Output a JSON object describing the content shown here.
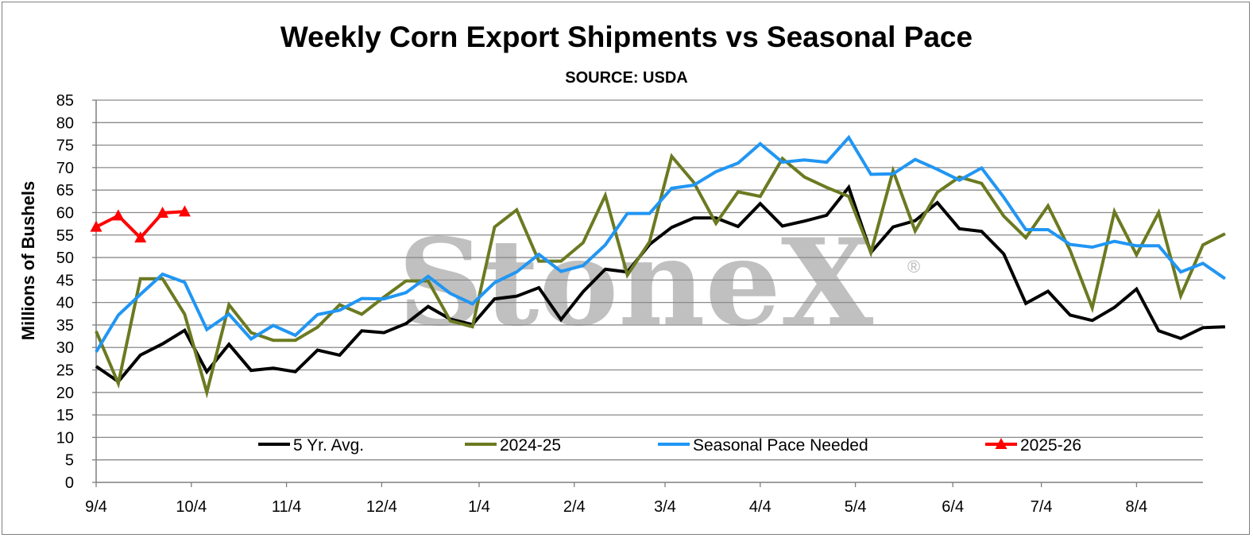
{
  "chart_data": {
    "type": "line",
    "title": "Weekly Corn Export Shipments vs Seasonal Pace",
    "subtitle": "SOURCE: USDA",
    "ylabel": "Millions of Bushels",
    "xlabel": "",
    "ylim": [
      0,
      85
    ],
    "ytick_step": 5,
    "x_tick_labels": [
      "9/4",
      "10/4",
      "11/4",
      "12/4",
      "1/4",
      "2/4",
      "3/4",
      "4/4",
      "5/4",
      "6/4",
      "7/4",
      "8/4"
    ],
    "x_tick_weeks": [
      0,
      4.3,
      8.6,
      12.9,
      17.3,
      21.6,
      25.7,
      30.0,
      34.3,
      38.7,
      42.7,
      47.0
    ],
    "x_weeks_max": 50,
    "grid": true,
    "legend_position": "bottom",
    "watermark": "StoneX",
    "series": [
      {
        "name": "5 Yr. Avg.",
        "color": "#000000",
        "marker": "none",
        "values": [
          25.8,
          22.4,
          28.3,
          30.8,
          33.8,
          24.6,
          30.7,
          24.9,
          25.4,
          24.6,
          29.4,
          28.3,
          33.7,
          33.3,
          35.3,
          39.1,
          36.3,
          35.1,
          40.8,
          41.4,
          43.3,
          36.2,
          42.4,
          47.4,
          46.8,
          52.9,
          56.7,
          58.8,
          58.8,
          56.9,
          62.0,
          57.0,
          58.1,
          59.4,
          65.6,
          51.1,
          56.8,
          58.2,
          62.2,
          56.4,
          55.8,
          50.8,
          39.8,
          42.5,
          37.2,
          36.0,
          38.9,
          43.0,
          33.7,
          32.0,
          34.4,
          34.6
        ]
      },
      {
        "name": "2024-25",
        "color": "#6b7a21",
        "marker": "none",
        "values": [
          33.6,
          22.0,
          45.3,
          45.3,
          37.4,
          20.0,
          39.5,
          33.3,
          31.6,
          31.6,
          34.5,
          39.5,
          37.4,
          41.2,
          44.8,
          44.8,
          35.9,
          34.6,
          56.8,
          60.6,
          49.2,
          49.2,
          53.3,
          63.8,
          46.1,
          53.5,
          72.5,
          66.7,
          57.6,
          64.6,
          63.6,
          72.0,
          67.9,
          65.6,
          63.6,
          51.1,
          69.3,
          55.9,
          64.5,
          67.9,
          66.5,
          59.2,
          54.4,
          61.5,
          51.6,
          38.8,
          60.2,
          50.6,
          60.0,
          41.5,
          52.8,
          55.3
        ]
      },
      {
        "name": "Seasonal Pace Needed",
        "color": "#2196f3",
        "marker": "none",
        "values": [
          29.0,
          37.2,
          41.8,
          46.3,
          44.5,
          34.0,
          37.4,
          31.9,
          34.9,
          32.7,
          37.3,
          38.3,
          40.9,
          40.8,
          42.2,
          45.8,
          42.0,
          39.7,
          44.4,
          46.8,
          50.7,
          46.9,
          48.2,
          52.8,
          59.8,
          59.8,
          65.4,
          66.1,
          69.1,
          71.0,
          75.3,
          71.2,
          71.7,
          71.2,
          76.7,
          68.5,
          68.6,
          71.8,
          69.6,
          67.2,
          69.9,
          63.4,
          56.2,
          56.2,
          52.9,
          52.3,
          53.6,
          52.6,
          52.6,
          46.8,
          48.7,
          45.3
        ]
      },
      {
        "name": "2025-26",
        "color": "#ff0000",
        "marker": "triangle",
        "values": [
          56.8,
          59.3,
          54.4,
          59.9,
          60.2
        ]
      }
    ]
  }
}
